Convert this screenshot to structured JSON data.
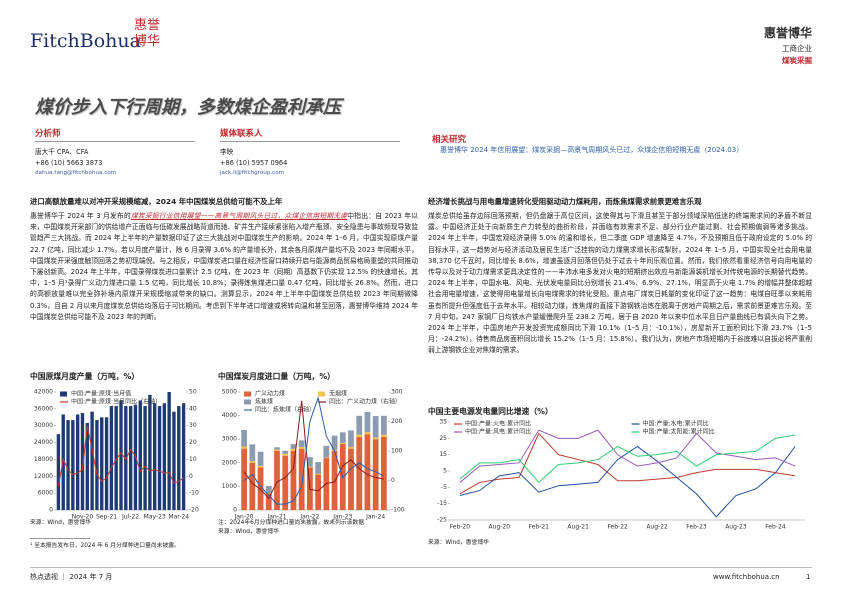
{
  "header": {
    "logo": "FitchBohua",
    "logo_cn": "惠誉博华",
    "company": "惠誉博华",
    "sector": "工商企业",
    "topic": "煤炭采掘"
  },
  "title": "煤价步入下行周期，多数煤企盈利承压",
  "analysts": {
    "label": "分析师",
    "name": "唐大千  CPA、CFA",
    "phone": "+86 (10) 5663 3873",
    "email": "dahua.tang@fitchbohua.com"
  },
  "media": {
    "label": "媒体联系人",
    "name": "李映",
    "phone": "+86 (10) 5957 0964",
    "email": "jack.li@fitchgroup.com"
  },
  "related": {
    "label": "相关研究",
    "text": "惠誉博华 2024 年信用展望：煤炭采掘—高景气周期风头已过，众煤企信用短期无虞（2024.03）"
  },
  "left": {
    "heading": "进口高额放量难以对冲开采规模缩减，2024 年中国煤炭总供给可能不及上年",
    "body": [
      "惠誉博华于 2024 年 3 月发布的",
      "煤炭采掘行业信用展望——高景气周期风头已过，众煤企信用短期无虞",
      "中指出：自 2023 年以来，中国煤炭开采部门的供给增产正面临与低碳发展战略背道而驰、矿井生产接续紧张陷入增产瓶颈、安全隐患与事故频现导致监管趋严三大挑战。而 2024 年上半年的产量数据印证了这三大挑战对中国煤炭生产的影响。2024 年 1–6 月，中国实现原煤产量 22.7 亿吨，同比减少 1.7%。若以月度产量计，除 6 月录得 3.6% 的产量增长外，其余各月原煤产量均不及 2023 年同期水平，中国煤炭开采强度触顶回落之势初现端倪。与之相反，中国煤炭进口量在经济性窗口持续开启与能源商品贸易格局重塑的共同推动下屡创新高。2024 年上半年，中国录得煤炭进口量累计 2.5 亿吨，在 2023 年（同期）高基数下仍实现 12.5% 的快速增长。其中，1–5 月¹录得广义动力煤进口量 1.5 亿吨，同比增长 10.8%；录得炼焦煤进口量 0.47 亿吨，同比增长 26.8%。然而，进口的高额放量难以完全弥补境内原煤开采规模缩减带来的缺口。测算显示，2024 年上半年中国煤炭总供给较 2023 年同期微降 0.3%，且自 2 月以来月度煤炭总供给均落后于可比期间。考虑到下半年进口增速或将转向温和甚至回落，惠誉博华维持 2024 年中国煤炭总供给可能不及 2023 年的判断。"
    ]
  },
  "right": {
    "heading": "经济增长挑战与用电量增速转化受阻驱动动力煤耗用，而炼焦煤需求前景更难言乐观",
    "body": "煤炭总供给虽存边际回落预期，但仍盘踞于高位区间，这使得其与下滑且甚至于部分领域深陷低迷的终端需求间的矛盾不断显露。中国经济正处于向新质生产力转型的曲折阶段，并面临有效需求不足、部分行业产能过剩、社会预期偏弱等诸多挑战。2024 年上半年，中国宏观经济录得 5.0% 的温和增长，但二季度 GDP 增速降至 4.7%，不及预期且低于政府设定的 5.0% 的目标水平，这一趋势对与经济活动及居民生活广泛挂钩的动力煤需求增长形成掣肘。2024 年 1–5 月，中国实现全社会用电量 38,370 亿千瓦时，同比增长 8.6%，增速虽逐月回落但仍处于过去十年间乐观位置。然而，我们依然看重经济信号向用电量的传导以及对于动力煤需求更具决定性的——丰沛水电多发对火电的短期挤出效应与新能源装机增长对传统电源的长期替代趋势。2024 年上半年，中国水电、风电、光伏发电量同比分别增长 21.4%、6.9%、27.1%，明显高于火电 1.7% 的增幅并整体超越社会用电量增速，这使得用电量增长向电煤需求的转化受阻。重点电厂煤炭日耗量的变化印证了这一趋势：电煤自旺季以来耗用虽有所提升但强度低于去年水平。相较动力煤，炼焦煤的直接下游钢铁冶炼在脱离于房地产周期之后，需求前景更难言乐观。至 7 月中旬，247 家钢厂日均铁水产量缓慢爬升至 238.2 万吨，居于自 2020 年以来中位水平且日产量曲线已有调头向下之势。2024 年上半年，中国房地产开发投资完成额同比下滑 10.1%（1–5 月：-10.1%），房屋新开工面积同比下滑 23.7%（1–5 月：-24.2%），待售商品房面积同比增长 15.2%（1–5 月：15.8%）。我们认为，房地产市场短期内于谷底难以自拔必将严重削弱上游钢铁企业对焦煤的需求。"
  },
  "chart_data": [
    {
      "type": "combo",
      "title": "中国原煤月度产量（万吨，%）",
      "source": "来源：Wind，惠誉博华",
      "categories": [
        null,
        null,
        null,
        null,
        null,
        "Nov-20",
        null,
        null,
        null,
        null,
        "Sep-21",
        null,
        null,
        null,
        null,
        "Jul-22",
        null,
        null,
        null,
        null,
        "May-23",
        null,
        null,
        null,
        null,
        "Mar-24",
        null
      ],
      "ylim": [
        0,
        42000
      ],
      "yticks": [
        0,
        6000,
        12000,
        18000,
        24000,
        30000,
        36000,
        42000
      ],
      "y2lim": [
        -20,
        50
      ],
      "y2ticks": [
        -20,
        -10,
        0,
        10,
        20,
        30,
        40,
        50
      ],
      "series": [
        {
          "name": "中国:产量:原煤:当月值",
          "kind": "bar",
          "color": "#1f3b73",
          "values": [
            27000,
            34000,
            32000,
            32000,
            34000,
            34500,
            31000,
            35000,
            32000,
            33000,
            33000,
            37000,
            37000,
            39000,
            37000,
            37000,
            37500,
            39000,
            37000,
            41000,
            38000,
            37000,
            38000,
            42000,
            35000,
            37000,
            38000
          ]
        },
        {
          "name": "中国:产量:原煤:当月同比（右轴）",
          "kind": "line",
          "axis": "y2",
          "color": "#c0392b",
          "values": [
            -6,
            10,
            4,
            1,
            2,
            4,
            30,
            16,
            1,
            -3,
            -1,
            5,
            10,
            14,
            10,
            16,
            12,
            3,
            6,
            3,
            4,
            3,
            2,
            2,
            -4,
            -3,
            -1
          ]
        }
      ]
    },
    {
      "type": "combo",
      "stacked": true,
      "title": "中国煤炭月度进口量（万吨，%）",
      "note": "注：2024年6月分煤种进口量尚未披露，故未列示该数据",
      "source": "来源：Wind，惠誉博华",
      "categories": [
        "Jan-20",
        null,
        null,
        null,
        "Jan-21",
        null,
        null,
        null,
        "Jan-22",
        null,
        null,
        null,
        "Jan-23",
        null,
        null,
        null,
        "Jan-24",
        null
      ],
      "ylim": [
        0,
        5000
      ],
      "yticks": [
        0,
        1000,
        2000,
        3000,
        4000,
        5000
      ],
      "y2lim": [
        -100,
        300
      ],
      "y2ticks": [
        -100,
        0,
        100,
        200,
        300
      ],
      "series": [
        {
          "name": "广义动力煤",
          "kind": "bar",
          "color": "#e0623a",
          "values": [
            2600,
            2000,
            1800,
            700,
            2500,
            2300,
            2500,
            2600,
            1800,
            1500,
            2200,
            2500,
            2800,
            2600,
            3100,
            3200,
            3000,
            3100
          ]
        },
        {
          "name": "无烟煤",
          "kind": "bar",
          "color": "#f2c14e",
          "values": [
            90,
            80,
            70,
            20,
            60,
            80,
            90,
            70,
            40,
            30,
            20,
            50,
            40,
            70,
            90,
            100,
            80,
            90
          ]
        },
        {
          "name": "炼焦煤",
          "kind": "bar",
          "color": "#8c9bb0",
          "values": [
            700,
            700,
            600,
            300,
            100,
            130,
            200,
            280,
            400,
            500,
            500,
            600,
            450,
            700,
            800,
            850,
            900,
            800
          ]
        },
        {
          "name": "同比：广义动力煤（右轴）",
          "kind": "line",
          "axis": "y2",
          "color": "#8b1a1a",
          "values": [
            30,
            -10,
            -30,
            -60,
            -5,
            10,
            40,
            270,
            -30,
            -35,
            -10,
            -5,
            50,
            70,
            40,
            20,
            10,
            5
          ]
        },
        {
          "name": "同比：炼焦煤（右轴）",
          "kind": "line",
          "axis": "y2",
          "color": "#2b5fa8",
          "values": [
            0,
            20,
            -20,
            -50,
            -80,
            -80,
            -70,
            -20,
            200,
            280,
            150,
            100,
            10,
            40,
            60,
            40,
            30,
            15
          ]
        }
      ]
    },
    {
      "type": "combo",
      "title": "中国主要电源发电量同比增速（%）",
      "source": "来源：Wind，惠誉博华",
      "categories": [
        "Feb-20",
        null,
        "Aug-20",
        null,
        "Feb-21",
        null,
        "Aug-21",
        null,
        "Feb-22",
        null,
        "Aug-22",
        null,
        "Feb-23",
        null,
        "Aug-23",
        null,
        "Feb-24",
        null
      ],
      "ylim": [
        -25,
        35
      ],
      "yticks": [
        -25,
        -15,
        -5,
        5,
        15,
        25,
        35
      ],
      "series": [
        {
          "name": "中国:产量:火电:累计同比",
          "kind": "line",
          "color": "#c0392b",
          "values": [
            -9,
            -2,
            0,
            1,
            28,
            15,
            12,
            9,
            -1,
            -1,
            0,
            1,
            4,
            6,
            6,
            6,
            4,
            2
          ]
        },
        {
          "name": "中国:产量:水电:累计同比",
          "kind": "line",
          "color": "#1f4e9c",
          "values": [
            -10,
            -7,
            2,
            4,
            -8,
            -4,
            -3,
            -2,
            12,
            20,
            11,
            1,
            -9,
            -23,
            -10,
            -6,
            4,
            20
          ]
        },
        {
          "name": "中国:产量:风电:累计同比",
          "kind": "line",
          "color": "#9b59b6",
          "values": [
            -2,
            8,
            9,
            10,
            30,
            25,
            25,
            30,
            15,
            8,
            10,
            13,
            28,
            16,
            14,
            12,
            13,
            8
          ]
        },
        {
          "name": "中国:产量:太阳能:累计同比",
          "kind": "line",
          "color": "#2ecc71",
          "values": [
            0,
            10,
            10,
            12,
            -2,
            9,
            10,
            12,
            20,
            14,
            15,
            17,
            8,
            15,
            16,
            17,
            25,
            27
          ]
        }
      ]
    }
  ],
  "footnote": "¹ 至本报告发布日，2024 年 6 月分煤种进口量尚未披露。",
  "footer": {
    "left": "热点透视 ｜ 2024 年 7 月",
    "url": "www.fitchbohua.cn",
    "page": "1"
  }
}
